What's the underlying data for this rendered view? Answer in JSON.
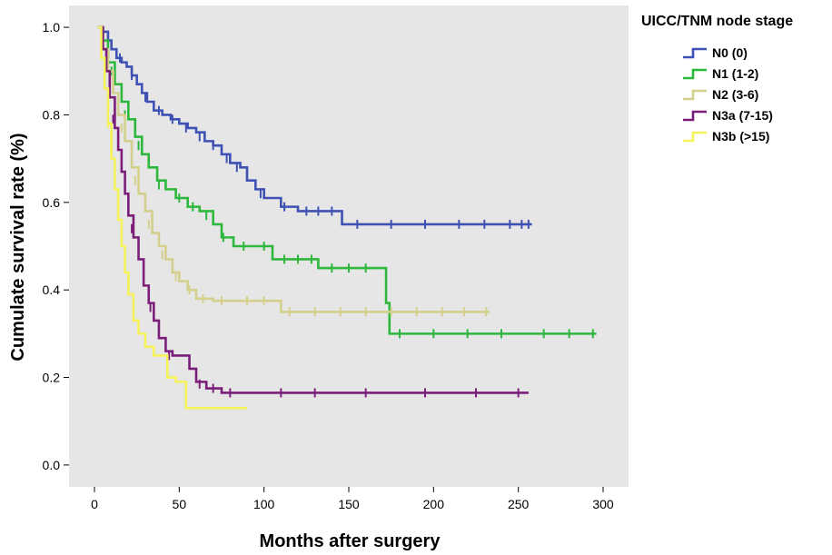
{
  "chart_data": {
    "type": "line",
    "step": true,
    "censor_marks": true,
    "xlabel": "Months after surgery",
    "ylabel": "Cumulate survival rate (%)",
    "xlim": [
      -15,
      315
    ],
    "ylim": [
      -0.05,
      1.05
    ],
    "xticks": [
      0,
      50,
      100,
      150,
      200,
      250,
      300
    ],
    "yticks": [
      0.0,
      0.2,
      0.4,
      0.6,
      0.8,
      1.0
    ],
    "ytick_labels": [
      "0.0",
      "0.2",
      "0.4",
      "0.6",
      "0.8",
      "1.0"
    ],
    "background": "#e6e6e6",
    "legend_title": "UICC/TNM node stage",
    "legend_position": "top-right-outside",
    "series": [
      {
        "name": "N0 (0)",
        "color": "#3f51b5",
        "points": [
          [
            2,
            1.0
          ],
          [
            5,
            0.99
          ],
          [
            8,
            0.97
          ],
          [
            10,
            0.95
          ],
          [
            13,
            0.93
          ],
          [
            16,
            0.92
          ],
          [
            19,
            0.91
          ],
          [
            22,
            0.89
          ],
          [
            25,
            0.87
          ],
          [
            28,
            0.85
          ],
          [
            31,
            0.83
          ],
          [
            35,
            0.81
          ],
          [
            40,
            0.8
          ],
          [
            45,
            0.79
          ],
          [
            50,
            0.78
          ],
          [
            55,
            0.77
          ],
          [
            60,
            0.76
          ],
          [
            65,
            0.74
          ],
          [
            70,
            0.73
          ],
          [
            75,
            0.71
          ],
          [
            80,
            0.69
          ],
          [
            86,
            0.68
          ],
          [
            90,
            0.65
          ],
          [
            95,
            0.63
          ],
          [
            100,
            0.61
          ],
          [
            110,
            0.59
          ],
          [
            120,
            0.58
          ],
          [
            146,
            0.55
          ],
          [
            258,
            0.55
          ]
        ],
        "censors": [
          [
            8,
            0.97
          ],
          [
            15,
            0.93
          ],
          [
            22,
            0.89
          ],
          [
            30,
            0.84
          ],
          [
            38,
            0.81
          ],
          [
            46,
            0.79
          ],
          [
            54,
            0.77
          ],
          [
            62,
            0.75
          ],
          [
            70,
            0.73
          ],
          [
            78,
            0.7
          ],
          [
            84,
            0.68
          ],
          [
            98,
            0.62
          ],
          [
            112,
            0.59
          ],
          [
            125,
            0.58
          ],
          [
            132,
            0.58
          ],
          [
            140,
            0.58
          ],
          [
            155,
            0.55
          ],
          [
            175,
            0.55
          ],
          [
            195,
            0.55
          ],
          [
            215,
            0.55
          ],
          [
            230,
            0.55
          ],
          [
            245,
            0.55
          ],
          [
            252,
            0.55
          ],
          [
            256,
            0.55
          ]
        ]
      },
      {
        "name": "N1 (1-2)",
        "color": "#2db83d",
        "points": [
          [
            3,
            1.0
          ],
          [
            5,
            0.97
          ],
          [
            8,
            0.92
          ],
          [
            12,
            0.87
          ],
          [
            16,
            0.83
          ],
          [
            20,
            0.79
          ],
          [
            24,
            0.75
          ],
          [
            28,
            0.71
          ],
          [
            32,
            0.68
          ],
          [
            37,
            0.65
          ],
          [
            42,
            0.63
          ],
          [
            48,
            0.61
          ],
          [
            55,
            0.59
          ],
          [
            62,
            0.58
          ],
          [
            70,
            0.55
          ],
          [
            75,
            0.52
          ],
          [
            82,
            0.5
          ],
          [
            105,
            0.47
          ],
          [
            132,
            0.45
          ],
          [
            170,
            0.45
          ],
          [
            172,
            0.37
          ],
          [
            174,
            0.3
          ],
          [
            296,
            0.3
          ]
        ],
        "censors": [
          [
            10,
            0.9
          ],
          [
            18,
            0.8
          ],
          [
            26,
            0.73
          ],
          [
            38,
            0.64
          ],
          [
            50,
            0.61
          ],
          [
            58,
            0.59
          ],
          [
            66,
            0.57
          ],
          [
            76,
            0.52
          ],
          [
            88,
            0.5
          ],
          [
            100,
            0.5
          ],
          [
            112,
            0.47
          ],
          [
            120,
            0.47
          ],
          [
            128,
            0.47
          ],
          [
            140,
            0.45
          ],
          [
            150,
            0.45
          ],
          [
            160,
            0.45
          ],
          [
            180,
            0.3
          ],
          [
            200,
            0.3
          ],
          [
            220,
            0.3
          ],
          [
            240,
            0.3
          ],
          [
            265,
            0.3
          ],
          [
            280,
            0.3
          ],
          [
            294,
            0.3
          ]
        ]
      },
      {
        "name": "N2 (3-6)",
        "color": "#d4cf8c",
        "points": [
          [
            3,
            1.0
          ],
          [
            5,
            0.95
          ],
          [
            8,
            0.9
          ],
          [
            11,
            0.85
          ],
          [
            14,
            0.8
          ],
          [
            18,
            0.74
          ],
          [
            22,
            0.68
          ],
          [
            26,
            0.62
          ],
          [
            30,
            0.58
          ],
          [
            34,
            0.53
          ],
          [
            38,
            0.5
          ],
          [
            42,
            0.47
          ],
          [
            46,
            0.44
          ],
          [
            50,
            0.42
          ],
          [
            55,
            0.4
          ],
          [
            60,
            0.38
          ],
          [
            70,
            0.375
          ],
          [
            110,
            0.35
          ],
          [
            233,
            0.35
          ]
        ],
        "censors": [
          [
            9,
            0.88
          ],
          [
            16,
            0.77
          ],
          [
            24,
            0.65
          ],
          [
            32,
            0.55
          ],
          [
            40,
            0.48
          ],
          [
            48,
            0.43
          ],
          [
            56,
            0.4
          ],
          [
            64,
            0.38
          ],
          [
            75,
            0.375
          ],
          [
            90,
            0.375
          ],
          [
            100,
            0.375
          ],
          [
            115,
            0.35
          ],
          [
            130,
            0.35
          ],
          [
            145,
            0.35
          ],
          [
            160,
            0.35
          ],
          [
            175,
            0.35
          ],
          [
            190,
            0.35
          ],
          [
            205,
            0.35
          ],
          [
            218,
            0.35
          ],
          [
            231,
            0.35
          ]
        ]
      },
      {
        "name": "N3a (7-15)",
        "color": "#7b1e7a",
        "points": [
          [
            3,
            1.0
          ],
          [
            5,
            0.95
          ],
          [
            7,
            0.9
          ],
          [
            9,
            0.84
          ],
          [
            12,
            0.77
          ],
          [
            14,
            0.72
          ],
          [
            16,
            0.67
          ],
          [
            18,
            0.62
          ],
          [
            20,
            0.57
          ],
          [
            23,
            0.52
          ],
          [
            26,
            0.47
          ],
          [
            29,
            0.41
          ],
          [
            32,
            0.37
          ],
          [
            35,
            0.33
          ],
          [
            38,
            0.29
          ],
          [
            42,
            0.26
          ],
          [
            46,
            0.25
          ],
          [
            52,
            0.25
          ],
          [
            56,
            0.22
          ],
          [
            60,
            0.19
          ],
          [
            66,
            0.175
          ],
          [
            75,
            0.165
          ],
          [
            256,
            0.165
          ]
        ],
        "censors": [
          [
            11,
            0.79
          ],
          [
            22,
            0.54
          ],
          [
            33,
            0.36
          ],
          [
            44,
            0.25
          ],
          [
            62,
            0.185
          ],
          [
            70,
            0.175
          ],
          [
            80,
            0.165
          ],
          [
            110,
            0.165
          ],
          [
            130,
            0.165
          ],
          [
            160,
            0.165
          ],
          [
            195,
            0.165
          ],
          [
            225,
            0.165
          ],
          [
            250,
            0.165
          ]
        ]
      },
      {
        "name": "N3b (>15)",
        "color": "#f6f25a",
        "points": [
          [
            2,
            1.0
          ],
          [
            4,
            0.93
          ],
          [
            6,
            0.86
          ],
          [
            8,
            0.78
          ],
          [
            10,
            0.7
          ],
          [
            12,
            0.63
          ],
          [
            14,
            0.56
          ],
          [
            16,
            0.5
          ],
          [
            18,
            0.44
          ],
          [
            20,
            0.39
          ],
          [
            23,
            0.33
          ],
          [
            26,
            0.3
          ],
          [
            30,
            0.27
          ],
          [
            35,
            0.25
          ],
          [
            43,
            0.2
          ],
          [
            48,
            0.19
          ],
          [
            54,
            0.13
          ],
          [
            90,
            0.13
          ]
        ],
        "censors": [
          [
            8,
            0.78
          ]
        ]
      }
    ]
  }
}
